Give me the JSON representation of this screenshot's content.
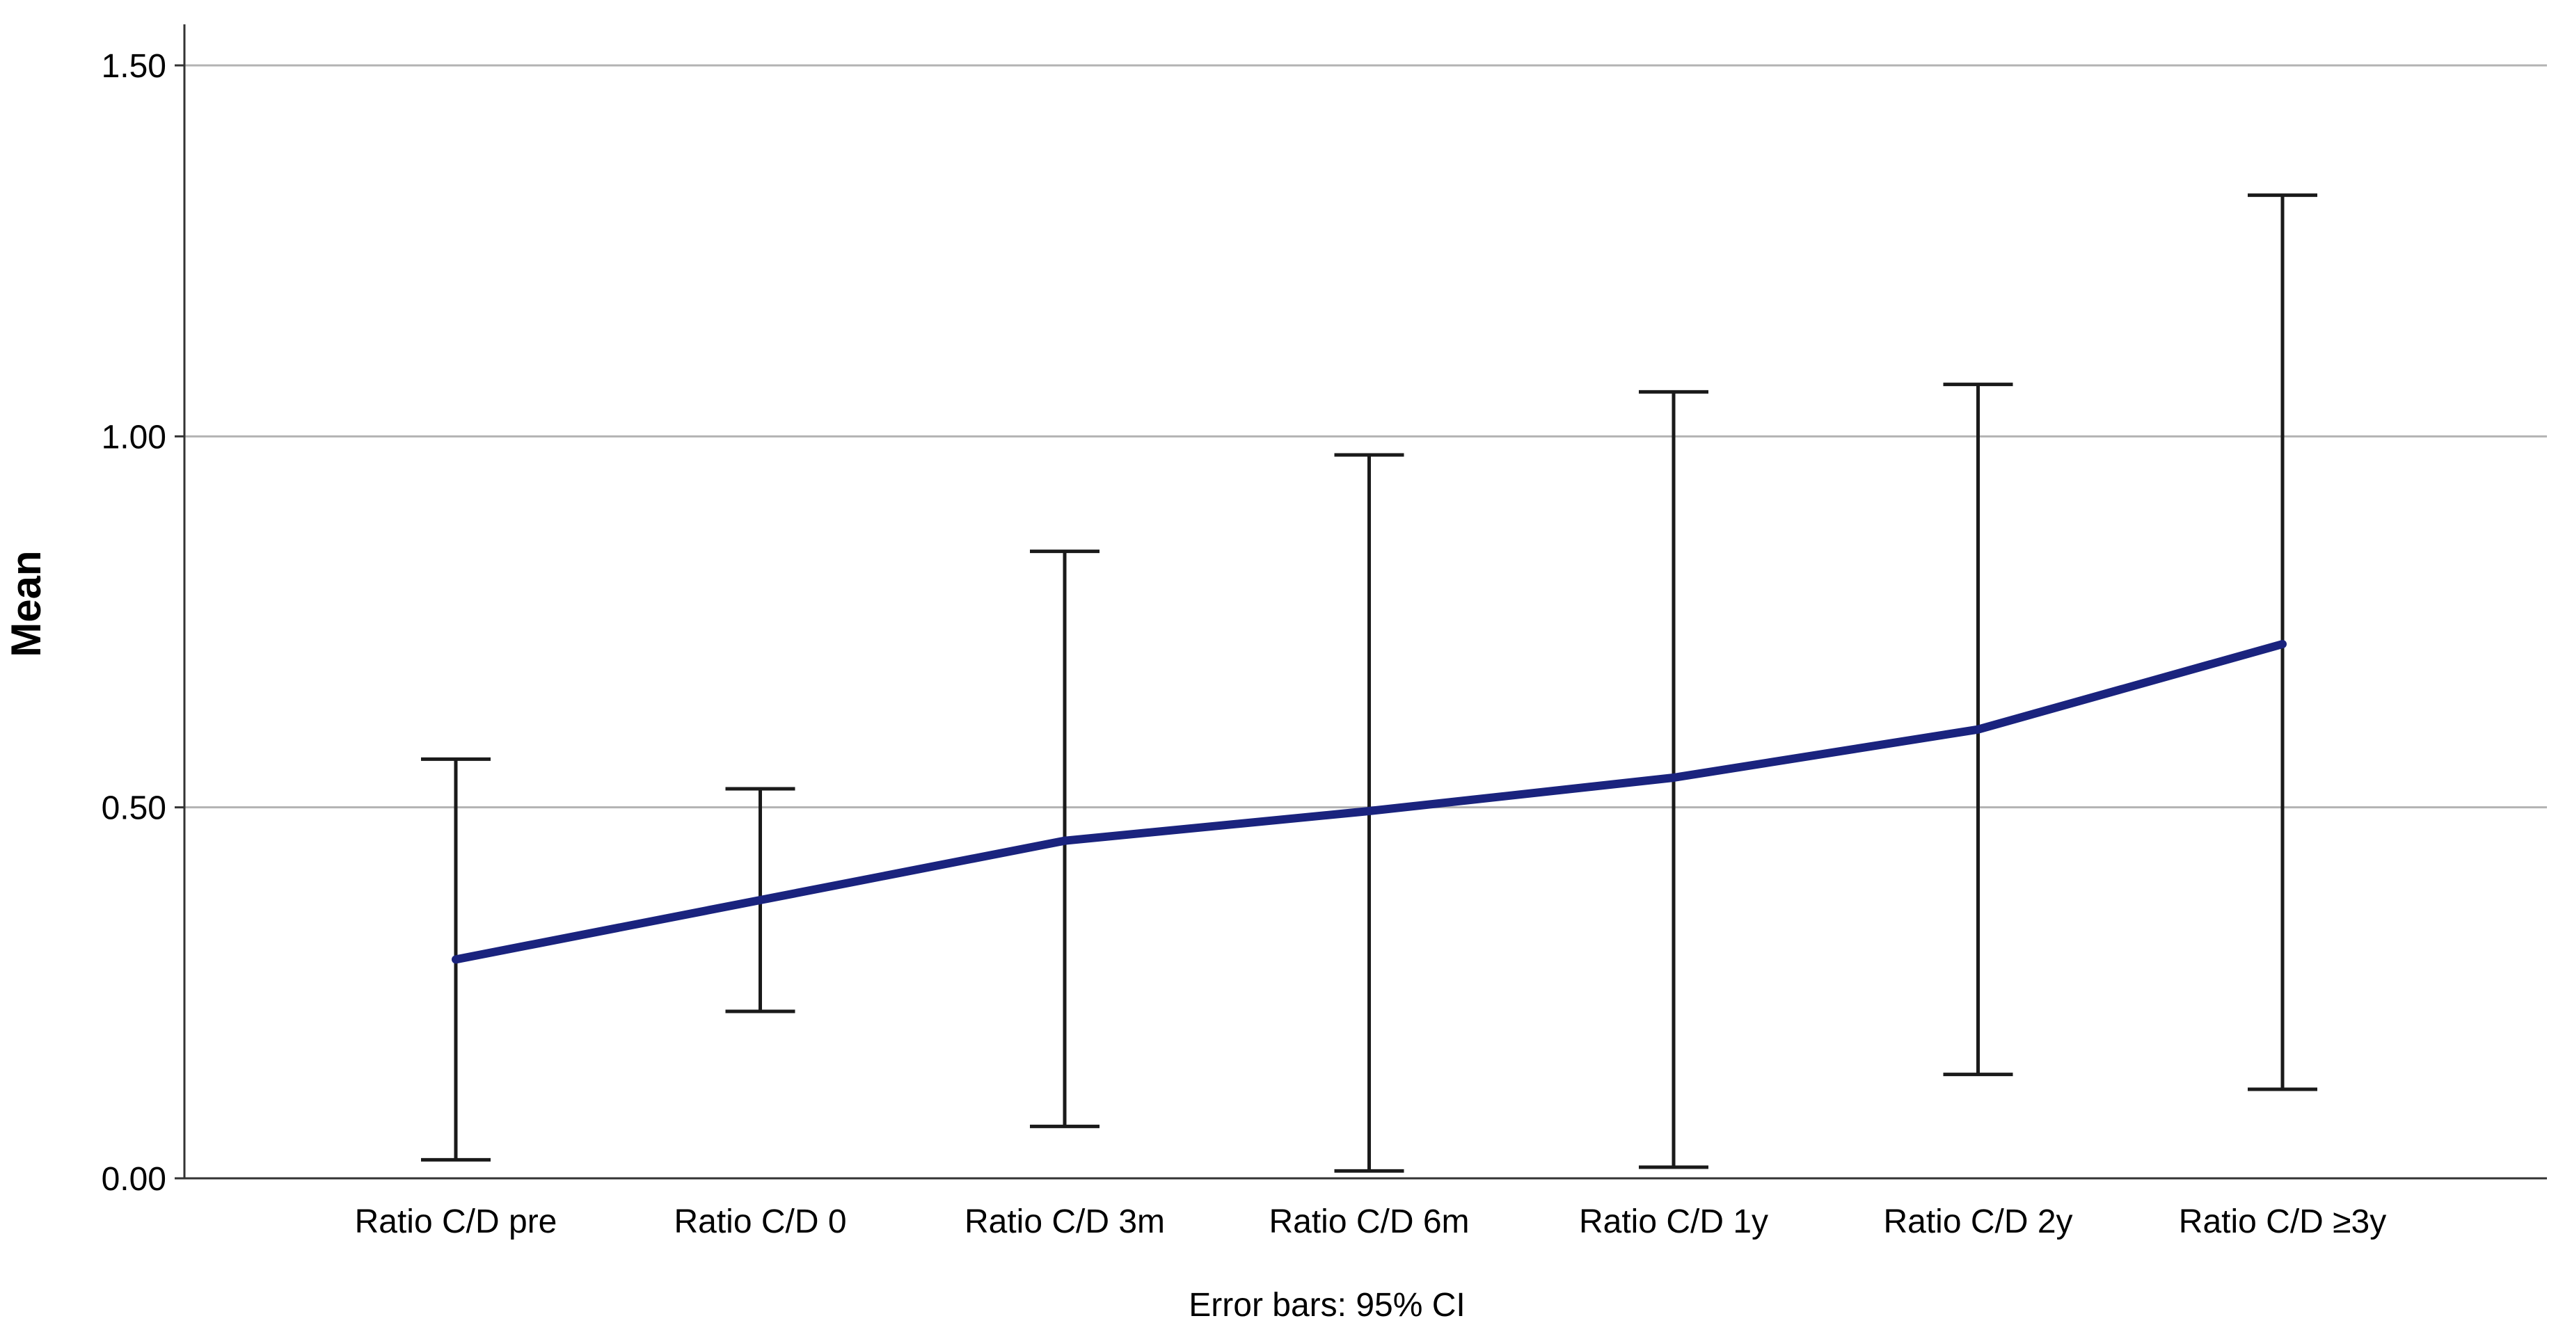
{
  "chart_data": {
    "type": "line",
    "title": "",
    "xlabel": "",
    "ylabel": "Mean",
    "ylim": [
      0,
      1.5
    ],
    "yticks": [
      {
        "value": 0.0,
        "label": "0.00"
      },
      {
        "value": 0.5,
        "label": "0.50"
      },
      {
        "value": 1.0,
        "label": "1.00"
      },
      {
        "value": 1.5,
        "label": "1.50"
      }
    ],
    "grid": true,
    "categories": [
      "Ratio C/D pre",
      "Ratio C/D 0",
      "Ratio C/D 3m",
      "Ratio C/D 6m",
      "Ratio C/D 1y",
      "Ratio C/D 2y",
      "Ratio C/D ≥3y"
    ],
    "series": [
      {
        "name": "Mean",
        "values": [
          0.295,
          0.375,
          0.455,
          0.495,
          0.54,
          0.605,
          0.72
        ],
        "ci_lower": [
          0.025,
          0.225,
          0.07,
          0.01,
          0.015,
          0.14,
          0.12
        ],
        "ci_upper": [
          0.565,
          0.525,
          0.845,
          0.975,
          1.06,
          1.07,
          1.325
        ]
      }
    ],
    "footnote": "Error bars: 95% CI",
    "colors": {
      "line": "#1A237E",
      "error_bar": "#1a1a1a",
      "gridline": "#b3b3b3",
      "axis": "#333333"
    }
  }
}
